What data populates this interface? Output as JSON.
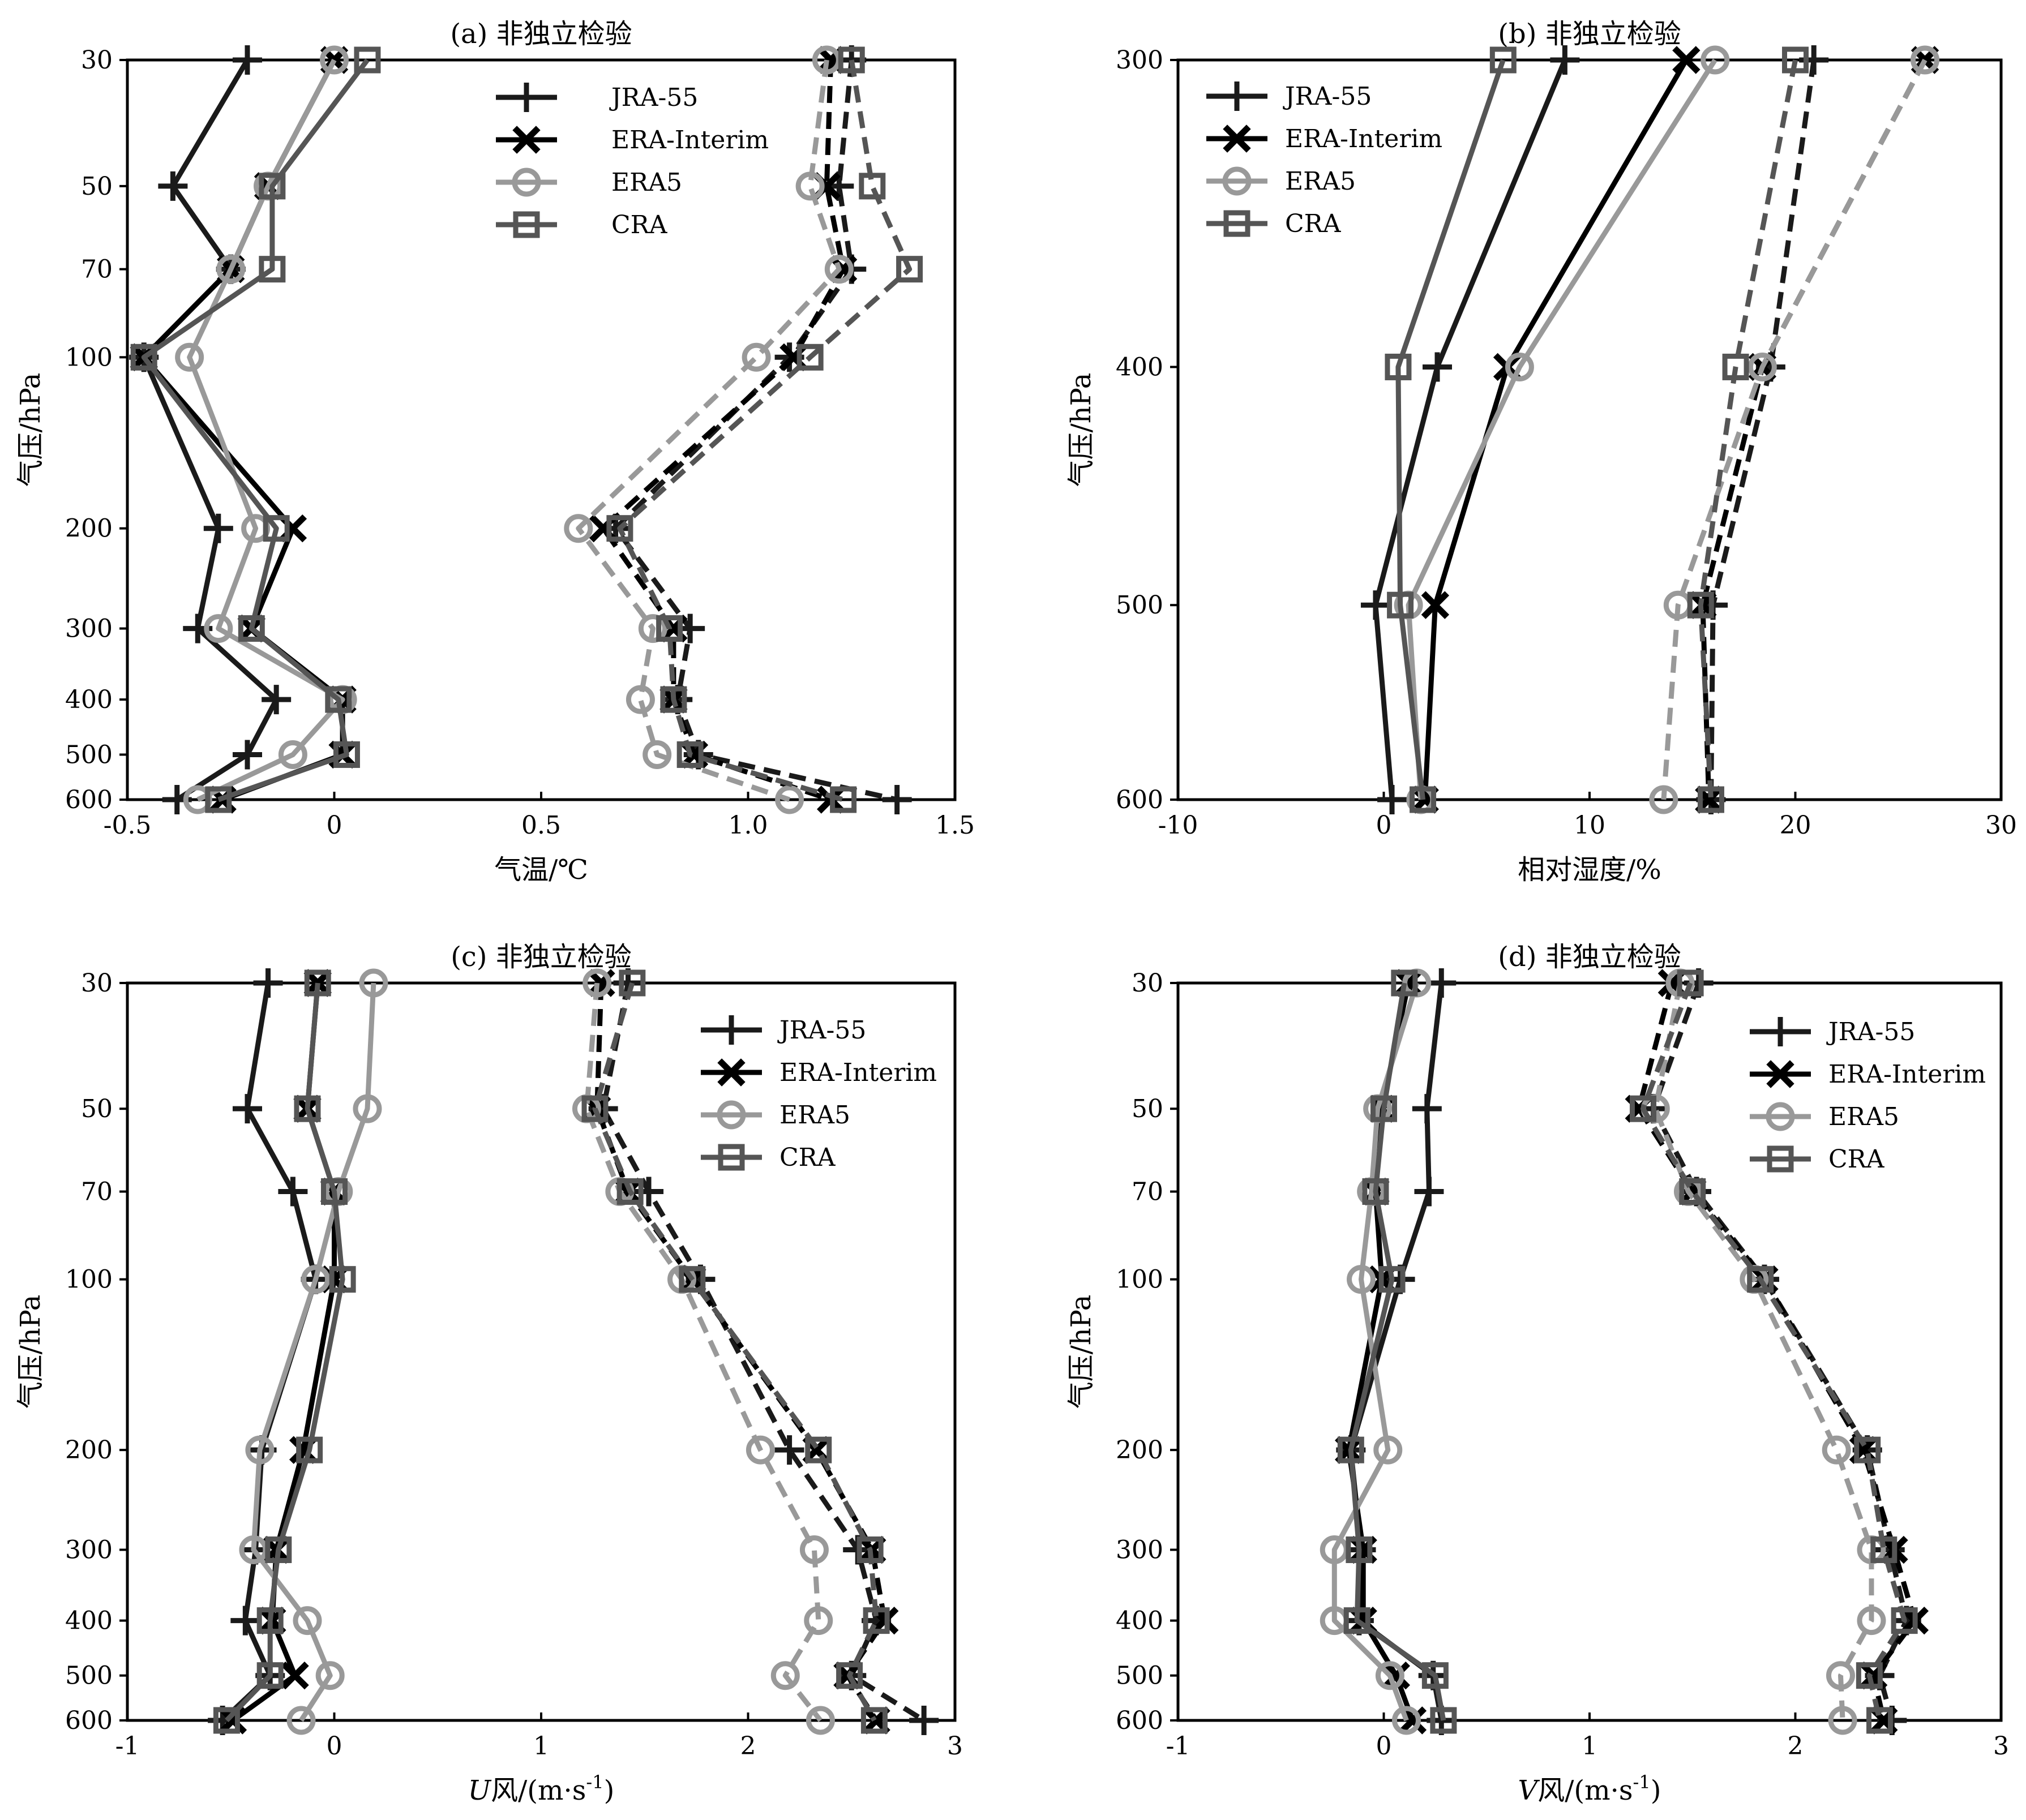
{
  "chart_data": [
    {
      "type": "line",
      "title": "(a) 非独立检验",
      "xlabel": "气温/℃",
      "ylabel": "气压/hPa",
      "xlim": [
        -0.5,
        1.5
      ],
      "xticks": [
        -0.5,
        0,
        0.5,
        1.0,
        1.5
      ],
      "xtick_labels": [
        "-0.5",
        "0",
        "0.5",
        "1.0",
        "1.5"
      ],
      "ylim": [
        30,
        600
      ],
      "yscale": "log",
      "yinverted": true,
      "y": [
        30,
        50,
        70,
        100,
        200,
        300,
        400,
        500,
        600
      ],
      "ytick_labels": [
        "30",
        "50",
        "70",
        "100",
        "200",
        "300",
        "400",
        "500",
        "600"
      ],
      "legend": "upper-right",
      "series": [
        {
          "name": "JRA-55",
          "style": "solid",
          "marker": "plus",
          "color": "#1a1a1a",
          "x": [
            -0.21,
            -0.39,
            -0.25,
            -0.46,
            -0.28,
            -0.33,
            -0.14,
            -0.21,
            -0.38
          ]
        },
        {
          "name": "ERA-Interim",
          "style": "solid",
          "marker": "x",
          "color": "#000000",
          "x": [
            0.0,
            -0.16,
            -0.25,
            -0.46,
            -0.1,
            -0.2,
            0.02,
            0.02,
            -0.27
          ]
        },
        {
          "name": "ERA5",
          "style": "solid",
          "marker": "circle",
          "color": "#999999",
          "x": [
            0.0,
            -0.16,
            -0.25,
            -0.35,
            -0.19,
            -0.28,
            0.02,
            -0.1,
            -0.33
          ]
        },
        {
          "name": "CRA",
          "style": "solid",
          "marker": "square",
          "color": "#555555",
          "x": [
            0.08,
            -0.15,
            -0.15,
            -0.46,
            -0.14,
            -0.2,
            0.01,
            0.03,
            -0.28
          ]
        },
        {
          "name": "JRA-55",
          "style": "dashed",
          "marker": "plus",
          "color": "#1a1a1a",
          "x": [
            1.25,
            1.22,
            1.25,
            1.1,
            0.68,
            0.86,
            0.83,
            0.88,
            1.36
          ]
        },
        {
          "name": "ERA-Interim",
          "style": "dashed",
          "marker": "x",
          "color": "#000000",
          "x": [
            1.2,
            1.19,
            1.23,
            1.11,
            0.65,
            0.82,
            0.82,
            0.87,
            1.2
          ]
        },
        {
          "name": "ERA5",
          "style": "dashed",
          "marker": "circle",
          "color": "#999999",
          "x": [
            1.19,
            1.15,
            1.22,
            1.02,
            0.59,
            0.77,
            0.74,
            0.78,
            1.1
          ]
        },
        {
          "name": "CRA",
          "style": "dashed",
          "marker": "square",
          "color": "#555555",
          "x": [
            1.25,
            1.3,
            1.39,
            1.15,
            0.69,
            0.81,
            0.82,
            0.86,
            1.23
          ]
        }
      ]
    },
    {
      "type": "line",
      "title": "(b) 非独立检验",
      "xlabel": "相对湿度/%",
      "ylabel": "气压/hPa",
      "xlim": [
        -10,
        30
      ],
      "xticks": [
        -10,
        0,
        10,
        20,
        30
      ],
      "xtick_labels": [
        "-10",
        "0",
        "10",
        "20",
        "30"
      ],
      "ylim": [
        300,
        600
      ],
      "yscale": "log",
      "yinverted": true,
      "y": [
        300,
        400,
        500,
        600
      ],
      "ytick_labels": [
        "300",
        "400",
        "500",
        "600"
      ],
      "legend": "upper-left",
      "series": [
        {
          "name": "JRA-55",
          "style": "solid",
          "marker": "plus",
          "color": "#1a1a1a",
          "x": [
            8.8,
            2.6,
            -0.4,
            0.4
          ]
        },
        {
          "name": "ERA-Interim",
          "style": "solid",
          "marker": "x",
          "color": "#000000",
          "x": [
            14.7,
            6.0,
            2.5,
            2.0
          ]
        },
        {
          "name": "ERA5",
          "style": "solid",
          "marker": "circle",
          "color": "#999999",
          "x": [
            16.1,
            6.6,
            1.2,
            1.8
          ]
        },
        {
          "name": "CRA",
          "style": "solid",
          "marker": "square",
          "color": "#555555",
          "x": [
            5.8,
            0.7,
            0.8,
            1.9
          ]
        },
        {
          "name": "JRA-55",
          "style": "dashed",
          "marker": "plus",
          "color": "#1a1a1a",
          "x": [
            20.9,
            18.8,
            16.0,
            15.9
          ]
        },
        {
          "name": "ERA-Interim",
          "style": "dashed",
          "marker": "x",
          "color": "#000000",
          "x": [
            26.3,
            18.4,
            15.5,
            15.8
          ]
        },
        {
          "name": "ERA5",
          "style": "dashed",
          "marker": "circle",
          "color": "#999999",
          "x": [
            26.3,
            18.4,
            14.3,
            13.6
          ]
        },
        {
          "name": "CRA",
          "style": "dashed",
          "marker": "square",
          "color": "#555555",
          "x": [
            20.0,
            17.1,
            15.4,
            15.9
          ]
        }
      ]
    },
    {
      "type": "line",
      "title": "(c) 非独立检验",
      "xlabel": "U风/(m·s-1)",
      "xlabel_var": "U",
      "xlabel_unit": "风/(m·s",
      "xlabel_exp": "-1",
      "xlabel_end": ")",
      "ylabel": "气压/hPa",
      "xlim": [
        -1,
        3
      ],
      "xticks": [
        -1,
        0,
        1,
        2,
        3
      ],
      "xtick_labels": [
        "-1",
        "0",
        "1",
        "2",
        "3"
      ],
      "ylim": [
        30,
        600
      ],
      "yscale": "log",
      "yinverted": true,
      "y": [
        30,
        50,
        70,
        100,
        200,
        300,
        400,
        500,
        600
      ],
      "ytick_labels": [
        "30",
        "50",
        "70",
        "100",
        "200",
        "300",
        "400",
        "500",
        "600"
      ],
      "legend": "upper-right",
      "series": [
        {
          "name": "JRA-55",
          "style": "solid",
          "marker": "plus",
          "color": "#1a1a1a",
          "x": [
            -0.32,
            -0.42,
            -0.2,
            -0.09,
            -0.35,
            -0.38,
            -0.43,
            -0.31,
            -0.54
          ]
        },
        {
          "name": "ERA-Interim",
          "style": "solid",
          "marker": "x",
          "color": "#000000",
          "x": [
            -0.08,
            -0.13,
            0.0,
            0.0,
            -0.15,
            -0.28,
            -0.3,
            -0.19,
            -0.49
          ]
        },
        {
          "name": "ERA5",
          "style": "solid",
          "marker": "circle",
          "color": "#999999",
          "x": [
            0.19,
            0.16,
            0.02,
            -0.09,
            -0.36,
            -0.39,
            -0.13,
            -0.02,
            -0.16
          ]
        },
        {
          "name": "CRA",
          "style": "solid",
          "marker": "square",
          "color": "#555555",
          "x": [
            -0.08,
            -0.13,
            0.0,
            0.04,
            -0.12,
            -0.27,
            -0.31,
            -0.31,
            -0.52
          ]
        },
        {
          "name": "JRA-55",
          "style": "dashed",
          "marker": "plus",
          "color": "#1a1a1a",
          "x": [
            1.42,
            1.3,
            1.52,
            1.77,
            2.2,
            2.53,
            2.62,
            2.5,
            2.85
          ]
        },
        {
          "name": "ERA-Interim",
          "style": "dashed",
          "marker": "x",
          "color": "#000000",
          "x": [
            1.29,
            1.27,
            1.42,
            1.73,
            2.33,
            2.6,
            2.66,
            2.48,
            2.62
          ]
        },
        {
          "name": "ERA5",
          "style": "dashed",
          "marker": "circle",
          "color": "#999999",
          "x": [
            1.27,
            1.22,
            1.38,
            1.68,
            2.06,
            2.32,
            2.34,
            2.18,
            2.35
          ]
        },
        {
          "name": "CRA",
          "style": "dashed",
          "marker": "square",
          "color": "#555555",
          "x": [
            1.44,
            1.26,
            1.43,
            1.73,
            2.34,
            2.59,
            2.62,
            2.49,
            2.61
          ]
        }
      ]
    },
    {
      "type": "line",
      "title": "(d) 非独立检验",
      "xlabel": "V风/(m·s-1)",
      "xlabel_var": "V",
      "xlabel_unit": "风/(m·s",
      "xlabel_exp": "-1",
      "xlabel_end": ")",
      "ylabel": "气压/hPa",
      "xlim": [
        -1,
        3
      ],
      "xticks": [
        -1,
        0,
        1,
        2,
        3
      ],
      "xtick_labels": [
        "-1",
        "0",
        "1",
        "2",
        "3"
      ],
      "ylim": [
        30,
        600
      ],
      "yscale": "log",
      "yinverted": true,
      "y": [
        30,
        50,
        70,
        100,
        200,
        300,
        400,
        500,
        600
      ],
      "ytick_labels": [
        "30",
        "50",
        "70",
        "100",
        "200",
        "300",
        "400",
        "500",
        "600"
      ],
      "legend": "upper-right",
      "series": [
        {
          "name": "JRA-55",
          "style": "solid",
          "marker": "plus",
          "color": "#1a1a1a",
          "x": [
            0.28,
            0.21,
            0.22,
            0.08,
            -0.16,
            -0.11,
            -0.12,
            0.24,
            0.28
          ]
        },
        {
          "name": "ERA-Interim",
          "style": "solid",
          "marker": "x",
          "color": "#000000",
          "x": [
            0.12,
            -0.01,
            -0.04,
            -0.01,
            -0.17,
            -0.1,
            -0.1,
            0.06,
            0.14
          ]
        },
        {
          "name": "ERA5",
          "style": "solid",
          "marker": "circle",
          "color": "#999999",
          "x": [
            0.16,
            -0.03,
            -0.06,
            -0.11,
            0.02,
            -0.24,
            -0.24,
            0.03,
            0.11
          ]
        },
        {
          "name": "CRA",
          "style": "solid",
          "marker": "square",
          "color": "#555555",
          "x": [
            0.1,
            0.0,
            -0.04,
            0.04,
            -0.16,
            -0.12,
            -0.13,
            0.25,
            0.29
          ]
        },
        {
          "name": "JRA-55",
          "style": "dashed",
          "marker": "plus",
          "color": "#1a1a1a",
          "x": [
            1.53,
            1.31,
            1.52,
            1.85,
            2.35,
            2.46,
            2.54,
            2.41,
            2.47
          ]
        },
        {
          "name": "ERA-Interim",
          "style": "dashed",
          "marker": "x",
          "color": "#000000",
          "x": [
            1.4,
            1.24,
            1.5,
            1.85,
            2.33,
            2.48,
            2.58,
            2.38,
            2.43
          ]
        },
        {
          "name": "ERA5",
          "style": "dashed",
          "marker": "circle",
          "color": "#999999",
          "x": [
            1.44,
            1.32,
            1.48,
            1.8,
            2.2,
            2.37,
            2.37,
            2.22,
            2.23
          ]
        },
        {
          "name": "CRA",
          "style": "dashed",
          "marker": "square",
          "color": "#555555",
          "x": [
            1.49,
            1.26,
            1.5,
            1.83,
            2.35,
            2.43,
            2.53,
            2.36,
            2.41
          ]
        }
      ]
    }
  ]
}
